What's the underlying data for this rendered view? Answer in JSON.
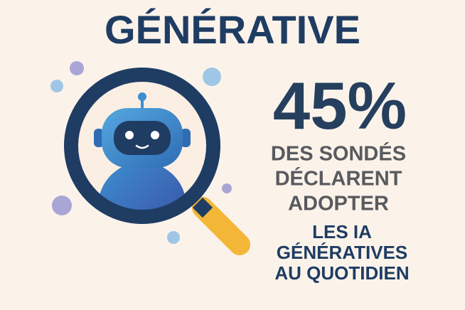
{
  "title": "GÉNÉRATIVE",
  "stat": {
    "value": "45%",
    "lines": [
      "DES SONDÉS",
      "DÉCLARENT",
      "ADOPTER"
    ],
    "highlight": [
      "LES IA",
      "GÉNÉRATIVES",
      "AU QUOTIDIEN"
    ]
  }
}
